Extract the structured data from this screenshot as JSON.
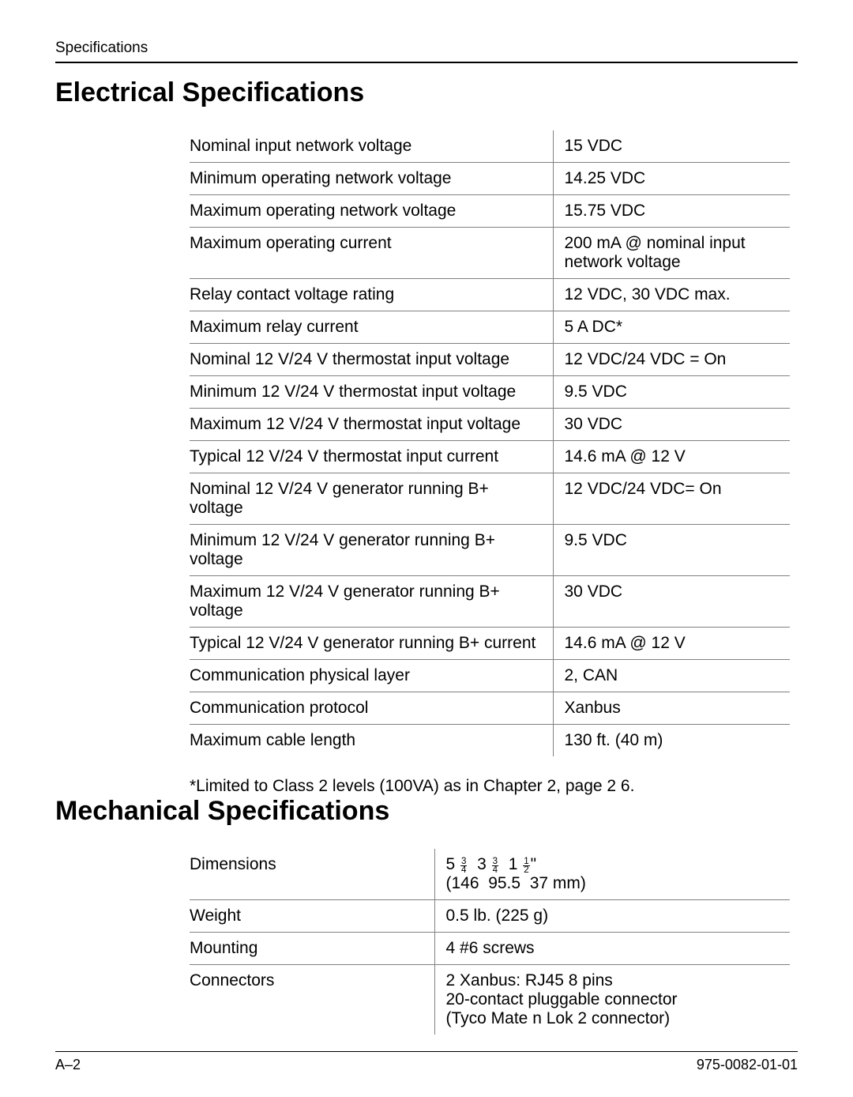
{
  "header": {
    "label": "Specifications"
  },
  "sections": {
    "electrical": {
      "title": "Electrical Specifications",
      "rows": [
        {
          "label": "Nominal input network voltage",
          "value": "15 VDC"
        },
        {
          "label": "Minimum operating network voltage",
          "value": "14.25 VDC"
        },
        {
          "label": "Maximum operating network voltage",
          "value": "15.75 VDC"
        },
        {
          "label": "Maximum operating current",
          "value": "200 mA @ nominal input network voltage"
        },
        {
          "label": "Relay contact voltage rating",
          "value": "12 VDC, 30 VDC max."
        },
        {
          "label": "Maximum relay current",
          "value": "5 A DC*"
        },
        {
          "label": "Nominal 12 V/24 V thermostat input voltage",
          "value": "12 VDC/24 VDC = On"
        },
        {
          "label": "Minimum 12 V/24 V thermostat input voltage",
          "value": "9.5 VDC"
        },
        {
          "label": "Maximum 12 V/24 V thermostat input voltage",
          "value": "30 VDC"
        },
        {
          "label": "Typical 12 V/24 V thermostat input current",
          "value": "14.6 mA @ 12 V"
        },
        {
          "label": "Nominal 12 V/24 V generator running B+ voltage",
          "value": "12 VDC/24 VDC= On"
        },
        {
          "label": "Minimum 12 V/24 V generator running B+ voltage",
          "value": "9.5 VDC"
        },
        {
          "label": "Maximum 12 V/24 V generator running B+ voltage",
          "value": "30 VDC"
        },
        {
          "label": "Typical 12 V/24 V generator running B+ current",
          "value": "14.6 mA @ 12 V"
        },
        {
          "label": "Communication physical layer",
          "value": "2, CAN"
        },
        {
          "label": "Communication protocol",
          "value": "Xanbus"
        },
        {
          "label": "Maximum cable length",
          "value": "130 ft. (40 m)"
        }
      ],
      "footnote": "*Limited to Class 2 levels (100VA) as in Chapter 2, page 2 6."
    },
    "mechanical": {
      "title": "Mechanical Specifications",
      "rows": [
        {
          "label": "Dimensions",
          "value": "__DIM__"
        },
        {
          "label": "Weight",
          "value": "0.5 lb. (225 g)"
        },
        {
          "label": "Mounting",
          "value": "4 #6 screws"
        },
        {
          "label": "Connectors",
          "value": "2  Xanbus: RJ45 8 pins\n20-contact pluggable connector\n(Tyco Mate n Lok 2 connector)"
        }
      ],
      "dimensions_html": "5 <span class=\"frac\"><span class=\"n\">3</span><span class=\"d\">4</span></span>&nbsp;&nbsp;3 <span class=\"frac\"><span class=\"n\">3</span><span class=\"d\">4</span></span>&nbsp;&nbsp;1 <span class=\"frac\"><span class=\"n\">1</span><span class=\"d\">2</span></span>\"<br>(146&nbsp;&nbsp;95.5&nbsp;&nbsp;37 mm)"
    }
  },
  "footer": {
    "left": "A–2",
    "right": "975-0082-01-01"
  }
}
